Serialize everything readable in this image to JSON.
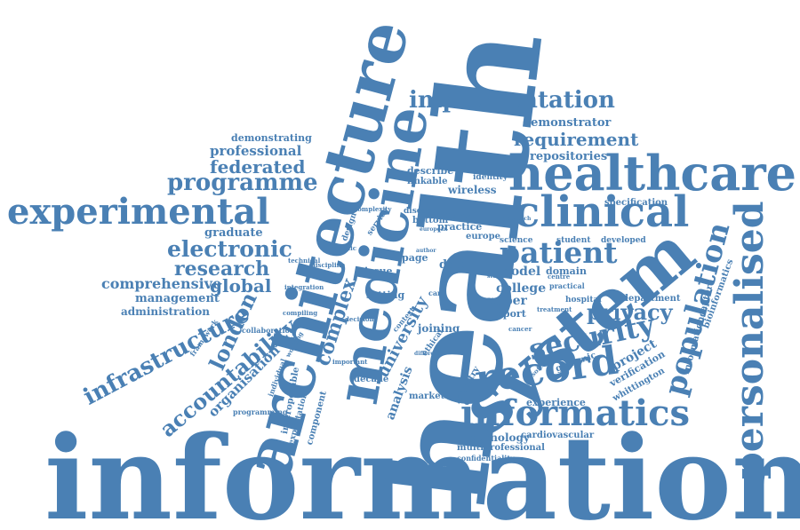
{
  "cloud": {
    "color": "#4a80b4",
    "words": [
      "information",
      "health",
      "architecture",
      "medicine",
      "system",
      "healthcare",
      "clinical",
      "experimental",
      "personalised",
      "informatics",
      "record",
      "implementation",
      "patient",
      "population",
      "security",
      "privacy",
      "requirement",
      "programme",
      "federated",
      "professional",
      "demonstrating",
      "demonstrator",
      "repositories",
      "electronic",
      "research",
      "graduate",
      "comprehensive",
      "management",
      "administration",
      "infrastructure",
      "london",
      "global",
      "accountability",
      "organisation",
      "complex",
      "university",
      "analysis",
      "decade",
      "marketing",
      "industry",
      "experience",
      "technology",
      "cardiovascular",
      "multiprofessional",
      "confidentiality",
      "project",
      "verification",
      "whittington",
      "genomic",
      "informationcapture",
      "bioinformatics",
      "department",
      "hospital",
      "college",
      "model",
      "domain",
      "support",
      "paper",
      "data",
      "joining",
      "setting",
      "issue",
      "page",
      "practice",
      "europe",
      "wireless",
      "linkable",
      "identity",
      "describe",
      "bottom",
      "disease",
      "specification",
      "developed",
      "student",
      "science",
      "framework",
      "collaboration",
      "programming",
      "interoperable",
      "exploitation",
      "component",
      "individual",
      "working",
      "integration",
      "technical",
      "design",
      "service",
      "ethical",
      "context",
      "decision",
      "important",
      "treatment",
      "software",
      "cancer",
      "practical",
      "centre",
      "different",
      "author",
      "compiling",
      "discipline",
      "complexity",
      "study",
      "european",
      "diversity",
      "approach",
      "genetic",
      "care"
    ]
  }
}
